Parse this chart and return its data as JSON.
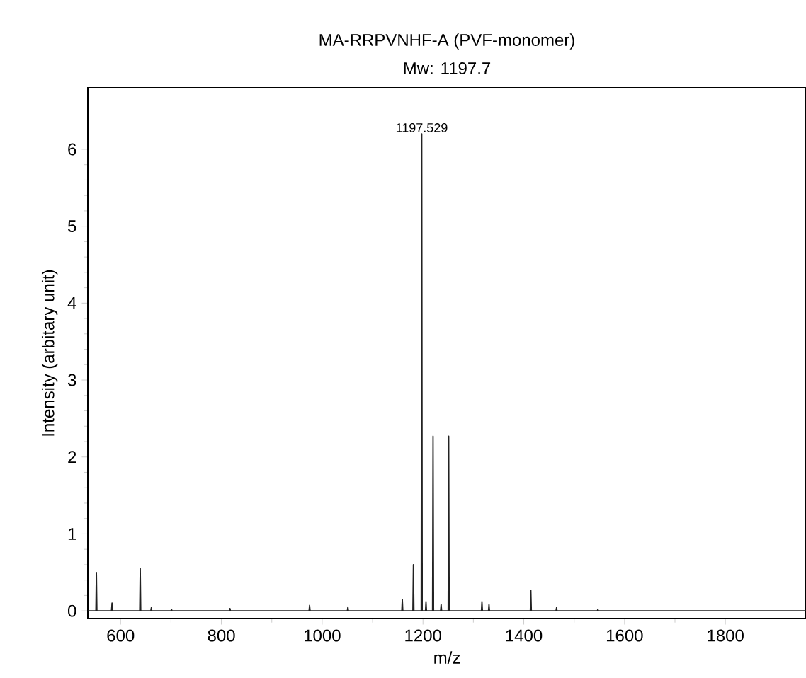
{
  "chart_data": {
    "type": "line",
    "title": "MA-RRPVNHF-A (PVF-monomer)",
    "subtitle": "Mw: 1197.7",
    "xlabel": "m/z",
    "ylabel": "Intensity (arbitary unit)",
    "x": [
      535,
      551,
      552,
      553,
      582,
      583,
      584,
      638,
      639,
      640,
      660,
      661,
      662,
      700,
      701,
      702,
      816,
      817,
      818,
      974,
      975,
      976,
      1050,
      1051,
      1052,
      1158,
      1159,
      1160,
      1180,
      1181,
      1182,
      1196.5,
      1197.529,
      1198.5,
      1205,
      1206,
      1207,
      1219,
      1220,
      1221,
      1235,
      1236,
      1237,
      1250,
      1251,
      1252,
      1316,
      1317,
      1318,
      1330,
      1331,
      1332,
      1413,
      1414,
      1415,
      1464,
      1465,
      1466,
      1546,
      1547,
      1548,
      1960
    ],
    "values": [
      0,
      0,
      0.5,
      0,
      0,
      0.1,
      0,
      0,
      0.55,
      0,
      0,
      0.04,
      0,
      0,
      0.02,
      0,
      0,
      0.03,
      0,
      0,
      0.07,
      0,
      0,
      0.05,
      0,
      0,
      0.15,
      0,
      0,
      0.6,
      0,
      0,
      6.2,
      0,
      0,
      0.12,
      0,
      0,
      2.27,
      0,
      0,
      0.08,
      0,
      0,
      2.27,
      0,
      0,
      0.12,
      0,
      0,
      0.08,
      0,
      0,
      0.27,
      0,
      0,
      0.04,
      0,
      0,
      0.02,
      0,
      0
    ],
    "color": "#222222",
    "line_style": "solid",
    "grid": false,
    "xlim": [
      535,
      1960
    ],
    "xticks": [
      600,
      800,
      1000,
      1200,
      1400,
      1600,
      1800
    ],
    "ylim": [
      -0.1,
      6.8
    ],
    "yticks": [
      0,
      1,
      2,
      3,
      4,
      5,
      6
    ],
    "annotations": [
      {
        "text": "1197.529",
        "x": 1197.529,
        "y": 6.2
      }
    ]
  }
}
